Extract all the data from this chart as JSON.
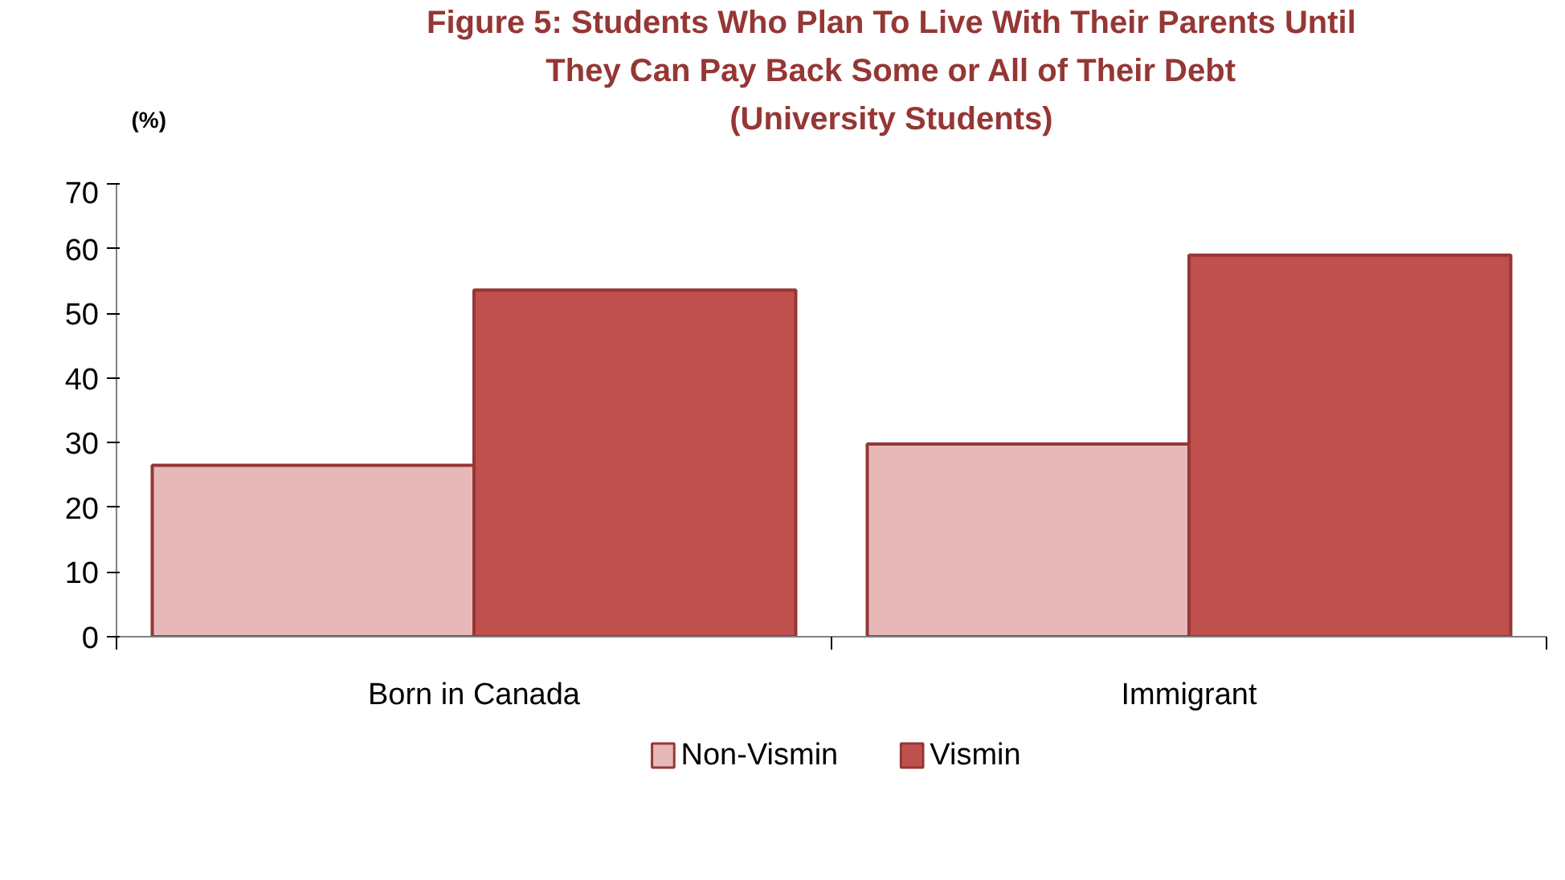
{
  "chart_data": {
    "type": "bar",
    "title": "Figure 5: Students Who Plan To Live With Their Parents Until\nThey Can Pay Back Some or All of Their Debt\n(University Students)",
    "ylabel": "(%)",
    "categories": [
      "Born in Canada",
      "Immigrant"
    ],
    "series": [
      {
        "name": "Non-Vismin",
        "color": "#e6b9b8",
        "values": [
          26.5,
          29.8
        ]
      },
      {
        "name": "Vismin",
        "color": "#c0504d",
        "values": [
          53.6,
          59.0
        ]
      }
    ],
    "ylim": [
      0,
      70
    ],
    "yticks": [
      0,
      10,
      20,
      30,
      40,
      50,
      60,
      70
    ],
    "grid": false,
    "legend": "bottom"
  }
}
